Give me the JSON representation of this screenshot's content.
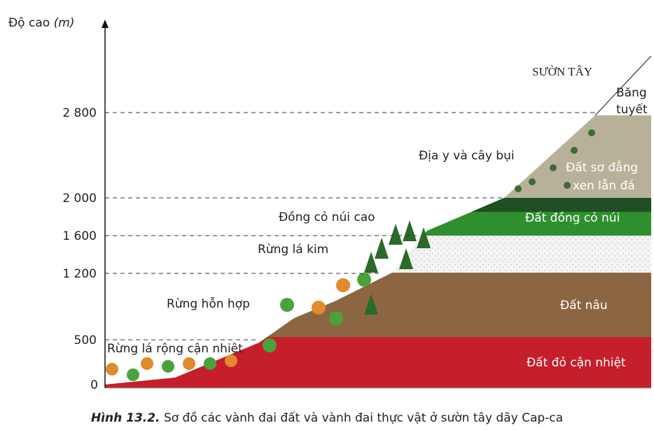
{
  "axis": {
    "title": "Độ cao",
    "unit": "(m)",
    "ticks": [
      "0",
      "500",
      "1 200",
      "1 600",
      "2 000",
      "2 800"
    ]
  },
  "side": "SƯỜN TÂY",
  "vegetation": [
    "Băng tuyết",
    "Địa y và cây bụi",
    "Đồng cỏ núi cao",
    "Rừng lá kim",
    "Rừng hỗn hợp",
    "Rừng lá rộng cận nhiệt"
  ],
  "soils": [
    "Đất sơ đẳng xen lẫn đá",
    "Đất đồng cỏ núi",
    "Đất nâu",
    "Đất đỏ cận nhiệt"
  ],
  "caption": {
    "label": "Hình 13.2.",
    "text": "Sơ đồ các vành đai đất và vành đai thực vật ở sườn tây dãy Cap-ca"
  }
}
